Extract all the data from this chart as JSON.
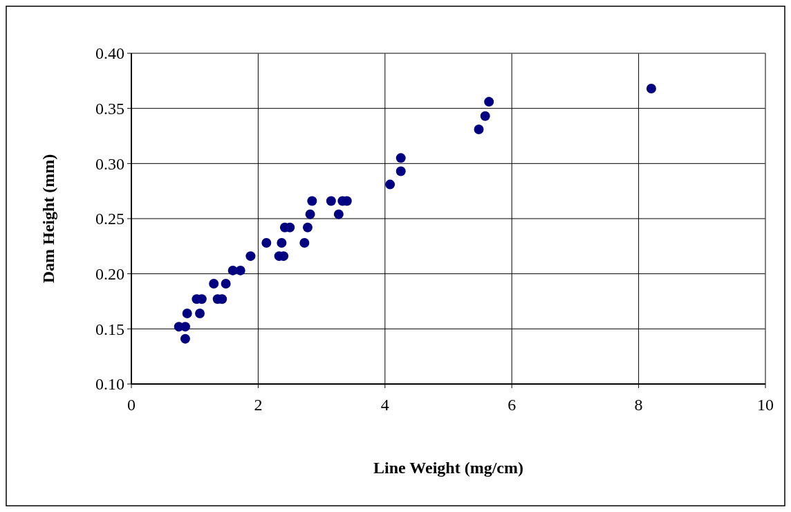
{
  "chart_data": {
    "type": "scatter",
    "xlabel": "Line Weight (mg/cm)",
    "ylabel": "Dam Height (mm)",
    "xlim": [
      0,
      10
    ],
    "xticks": [
      0,
      2,
      4,
      6,
      8,
      10
    ],
    "ylim": [
      0.1,
      0.4
    ],
    "yticks": [
      {
        "value": 0.1,
        "label": "0.10"
      },
      {
        "value": 0.15,
        "label": "0.15"
      },
      {
        "value": 0.2,
        "label": "0.20"
      },
      {
        "value": 0.25,
        "label": "0.25"
      },
      {
        "value": 0.3,
        "label": "0.30"
      },
      {
        "value": 0.35,
        "label": "0.35"
      },
      {
        "value": 0.4,
        "label": "0.40"
      }
    ],
    "grid": true,
    "marker": "circle",
    "series": [
      {
        "color": "#000080",
        "x": [
          0.75,
          0.85,
          0.85,
          0.88,
          1.03,
          1.11,
          1.08,
          1.3,
          1.36,
          1.43,
          1.49,
          1.6,
          1.72,
          1.88,
          2.13,
          2.33,
          2.4,
          2.37,
          2.42,
          2.5,
          2.73,
          2.78,
          2.82,
          2.85,
          3.15,
          3.27,
          3.33,
          3.4,
          4.08,
          4.25,
          4.25,
          5.48,
          5.58,
          5.64,
          8.2
        ],
        "values": [
          0.152,
          0.152,
          0.141,
          0.164,
          0.177,
          0.177,
          0.164,
          0.191,
          0.177,
          0.177,
          0.191,
          0.203,
          0.203,
          0.216,
          0.228,
          0.216,
          0.216,
          0.228,
          0.242,
          0.242,
          0.228,
          0.242,
          0.254,
          0.266,
          0.266,
          0.254,
          0.266,
          0.266,
          0.281,
          0.293,
          0.305,
          0.331,
          0.343,
          0.356,
          0.368
        ]
      }
    ]
  }
}
